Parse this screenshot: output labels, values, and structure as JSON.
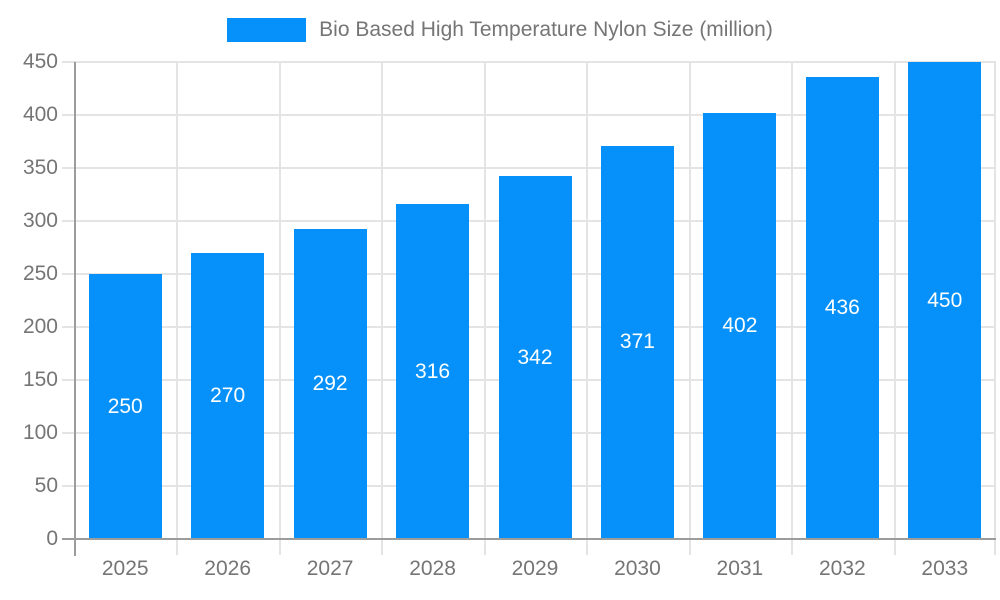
{
  "chart_data": {
    "type": "bar",
    "title": "Bio Based High Temperature Nylon Size (million)",
    "categories": [
      "2025",
      "2026",
      "2027",
      "2028",
      "2029",
      "2030",
      "2031",
      "2032",
      "2033"
    ],
    "values": [
      250,
      270,
      292,
      316,
      342,
      371,
      402,
      436,
      450
    ],
    "series_name": "Bio Based High Temperature Nylon Size (million)",
    "xlabel": "",
    "ylabel": "",
    "ylim": [
      0,
      450
    ],
    "ytick_step": 50,
    "yticks": [
      "0",
      "50",
      "100",
      "150",
      "200",
      "250",
      "300",
      "350",
      "400",
      "450"
    ],
    "grid": true,
    "legend_position": "top",
    "value_labels_shown": true
  },
  "colors": {
    "bar": "#0691fa",
    "grid": "#e4e4e4",
    "axis": "#9c9c9c",
    "tick_text": "#757575",
    "legend_text": "#757575",
    "value_label_text": "#ffffff",
    "background": "#ffffff"
  }
}
